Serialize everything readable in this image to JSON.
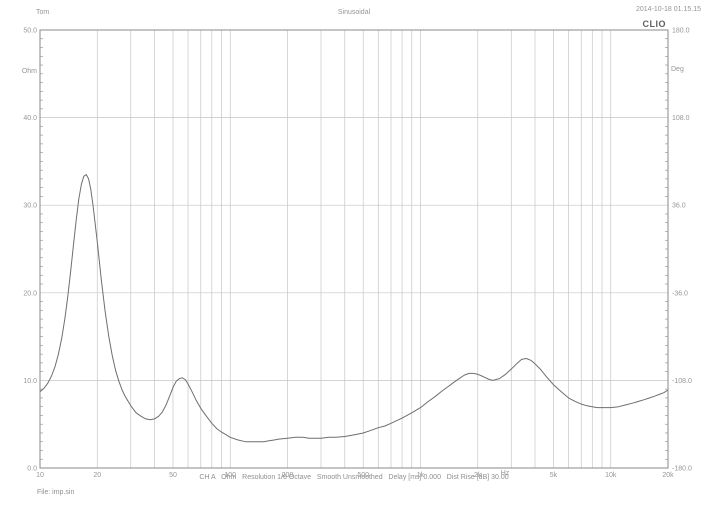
{
  "header": {
    "user": "Tom",
    "title": "Sinusoidal",
    "datetime": "2014-10-18 01.15.15",
    "brand": "CLIO"
  },
  "footer": {
    "status": "CH A   Ohm   Resolution 1/6 Octave   Smooth Unsmoothed   Delay [ms] 0.000   Dist Rise [dB] 30.00",
    "file_label": "File: imp.sin"
  },
  "colors": {
    "background": "#ffffff",
    "grid": "#c6c6c6",
    "axis": "#8a8a8a",
    "curve": "#6e6e6e",
    "text": "#969696"
  },
  "chart_data": {
    "type": "line",
    "title": "Sinusoidal",
    "x_axis": {
      "unit": "Hz",
      "scale": "log",
      "min": 10,
      "max": 20000,
      "tick_values": [
        10,
        20,
        50,
        100,
        200,
        500,
        1000,
        2000,
        5000,
        10000,
        20000
      ],
      "tick_labels": [
        "10",
        "20",
        "50",
        "100",
        "200",
        "500",
        "1k",
        "2k",
        "5k",
        "10k",
        "20k"
      ],
      "grid": "all-log-positions"
    },
    "y_left": {
      "unit": "Ohm",
      "min": 0,
      "max": 50,
      "tick_values": [
        50,
        40,
        30,
        20,
        10,
        0
      ],
      "tick_labels": [
        "50.0",
        "40.0",
        "30.0",
        "20.0",
        "10.0",
        "0.0"
      ],
      "minor_tick_step": 1
    },
    "y_right": {
      "unit": "Deg",
      "min": -180,
      "max": 180,
      "tick_values": [
        180,
        108,
        36,
        -36,
        -108,
        -180
      ],
      "tick_labels": [
        "180.0",
        "108.0",
        "36.0",
        "-36.0",
        "-108.0",
        "-180.0"
      ]
    },
    "series": [
      {
        "name": "impedance-modulus",
        "axis": "left",
        "points": [
          [
            10,
            8.7
          ],
          [
            10.5,
            9.1
          ],
          [
            11,
            9.7
          ],
          [
            11.5,
            10.5
          ],
          [
            12,
            11.6
          ],
          [
            12.5,
            13.0
          ],
          [
            13,
            14.8
          ],
          [
            13.5,
            17.0
          ],
          [
            14,
            19.6
          ],
          [
            14.5,
            22.5
          ],
          [
            15,
            25.5
          ],
          [
            15.5,
            28.3
          ],
          [
            16,
            30.7
          ],
          [
            16.5,
            32.4
          ],
          [
            17,
            33.3
          ],
          [
            17.5,
            33.5
          ],
          [
            18,
            33.0
          ],
          [
            18.5,
            31.8
          ],
          [
            19,
            30.0
          ],
          [
            20,
            25.8
          ],
          [
            21,
            21.5
          ],
          [
            22,
            17.9
          ],
          [
            23,
            15.0
          ],
          [
            24,
            12.8
          ],
          [
            25,
            11.1
          ],
          [
            26,
            9.9
          ],
          [
            27,
            8.9
          ],
          [
            28,
            8.2
          ],
          [
            30,
            7.1
          ],
          [
            32,
            6.3
          ],
          [
            34,
            5.9
          ],
          [
            36,
            5.6
          ],
          [
            38,
            5.5
          ],
          [
            40,
            5.6
          ],
          [
            42,
            5.9
          ],
          [
            44,
            6.4
          ],
          [
            46,
            7.2
          ],
          [
            48,
            8.2
          ],
          [
            50,
            9.2
          ],
          [
            52,
            9.9
          ],
          [
            54,
            10.2
          ],
          [
            56,
            10.3
          ],
          [
            58,
            10.1
          ],
          [
            60,
            9.6
          ],
          [
            63,
            8.7
          ],
          [
            66,
            7.8
          ],
          [
            70,
            6.8
          ],
          [
            75,
            5.9
          ],
          [
            80,
            5.1
          ],
          [
            85,
            4.5
          ],
          [
            90,
            4.1
          ],
          [
            95,
            3.8
          ],
          [
            100,
            3.5
          ],
          [
            110,
            3.2
          ],
          [
            120,
            3.0
          ],
          [
            130,
            3.0
          ],
          [
            140,
            3.0
          ],
          [
            150,
            3.0
          ],
          [
            160,
            3.1
          ],
          [
            170,
            3.2
          ],
          [
            180,
            3.3
          ],
          [
            200,
            3.4
          ],
          [
            220,
            3.5
          ],
          [
            240,
            3.5
          ],
          [
            260,
            3.4
          ],
          [
            280,
            3.4
          ],
          [
            300,
            3.4
          ],
          [
            330,
            3.5
          ],
          [
            360,
            3.5
          ],
          [
            400,
            3.6
          ],
          [
            450,
            3.8
          ],
          [
            500,
            4.0
          ],
          [
            550,
            4.3
          ],
          [
            600,
            4.6
          ],
          [
            650,
            4.8
          ],
          [
            700,
            5.1
          ],
          [
            800,
            5.7
          ],
          [
            900,
            6.3
          ],
          [
            1000,
            6.9
          ],
          [
            1100,
            7.6
          ],
          [
            1200,
            8.2
          ],
          [
            1300,
            8.8
          ],
          [
            1400,
            9.3
          ],
          [
            1500,
            9.8
          ],
          [
            1600,
            10.2
          ],
          [
            1700,
            10.6
          ],
          [
            1800,
            10.8
          ],
          [
            1900,
            10.8
          ],
          [
            2000,
            10.7
          ],
          [
            2100,
            10.5
          ],
          [
            2200,
            10.3
          ],
          [
            2300,
            10.1
          ],
          [
            2400,
            10.0
          ],
          [
            2500,
            10.1
          ],
          [
            2600,
            10.2
          ],
          [
            2800,
            10.7
          ],
          [
            3000,
            11.3
          ],
          [
            3200,
            11.9
          ],
          [
            3400,
            12.4
          ],
          [
            3600,
            12.5
          ],
          [
            3800,
            12.3
          ],
          [
            4000,
            11.9
          ],
          [
            4300,
            11.2
          ],
          [
            4600,
            10.4
          ],
          [
            5000,
            9.5
          ],
          [
            5500,
            8.7
          ],
          [
            6000,
            8.0
          ],
          [
            6500,
            7.6
          ],
          [
            7000,
            7.3
          ],
          [
            7500,
            7.1
          ],
          [
            8000,
            7.0
          ],
          [
            8500,
            6.9
          ],
          [
            9000,
            6.9
          ],
          [
            10000,
            6.9
          ],
          [
            11000,
            7.0
          ],
          [
            12000,
            7.2
          ],
          [
            13000,
            7.4
          ],
          [
            14000,
            7.6
          ],
          [
            15000,
            7.8
          ],
          [
            16000,
            8.0
          ],
          [
            17000,
            8.2
          ],
          [
            18000,
            8.4
          ],
          [
            19000,
            8.6
          ],
          [
            20000,
            8.9
          ]
        ]
      }
    ]
  }
}
